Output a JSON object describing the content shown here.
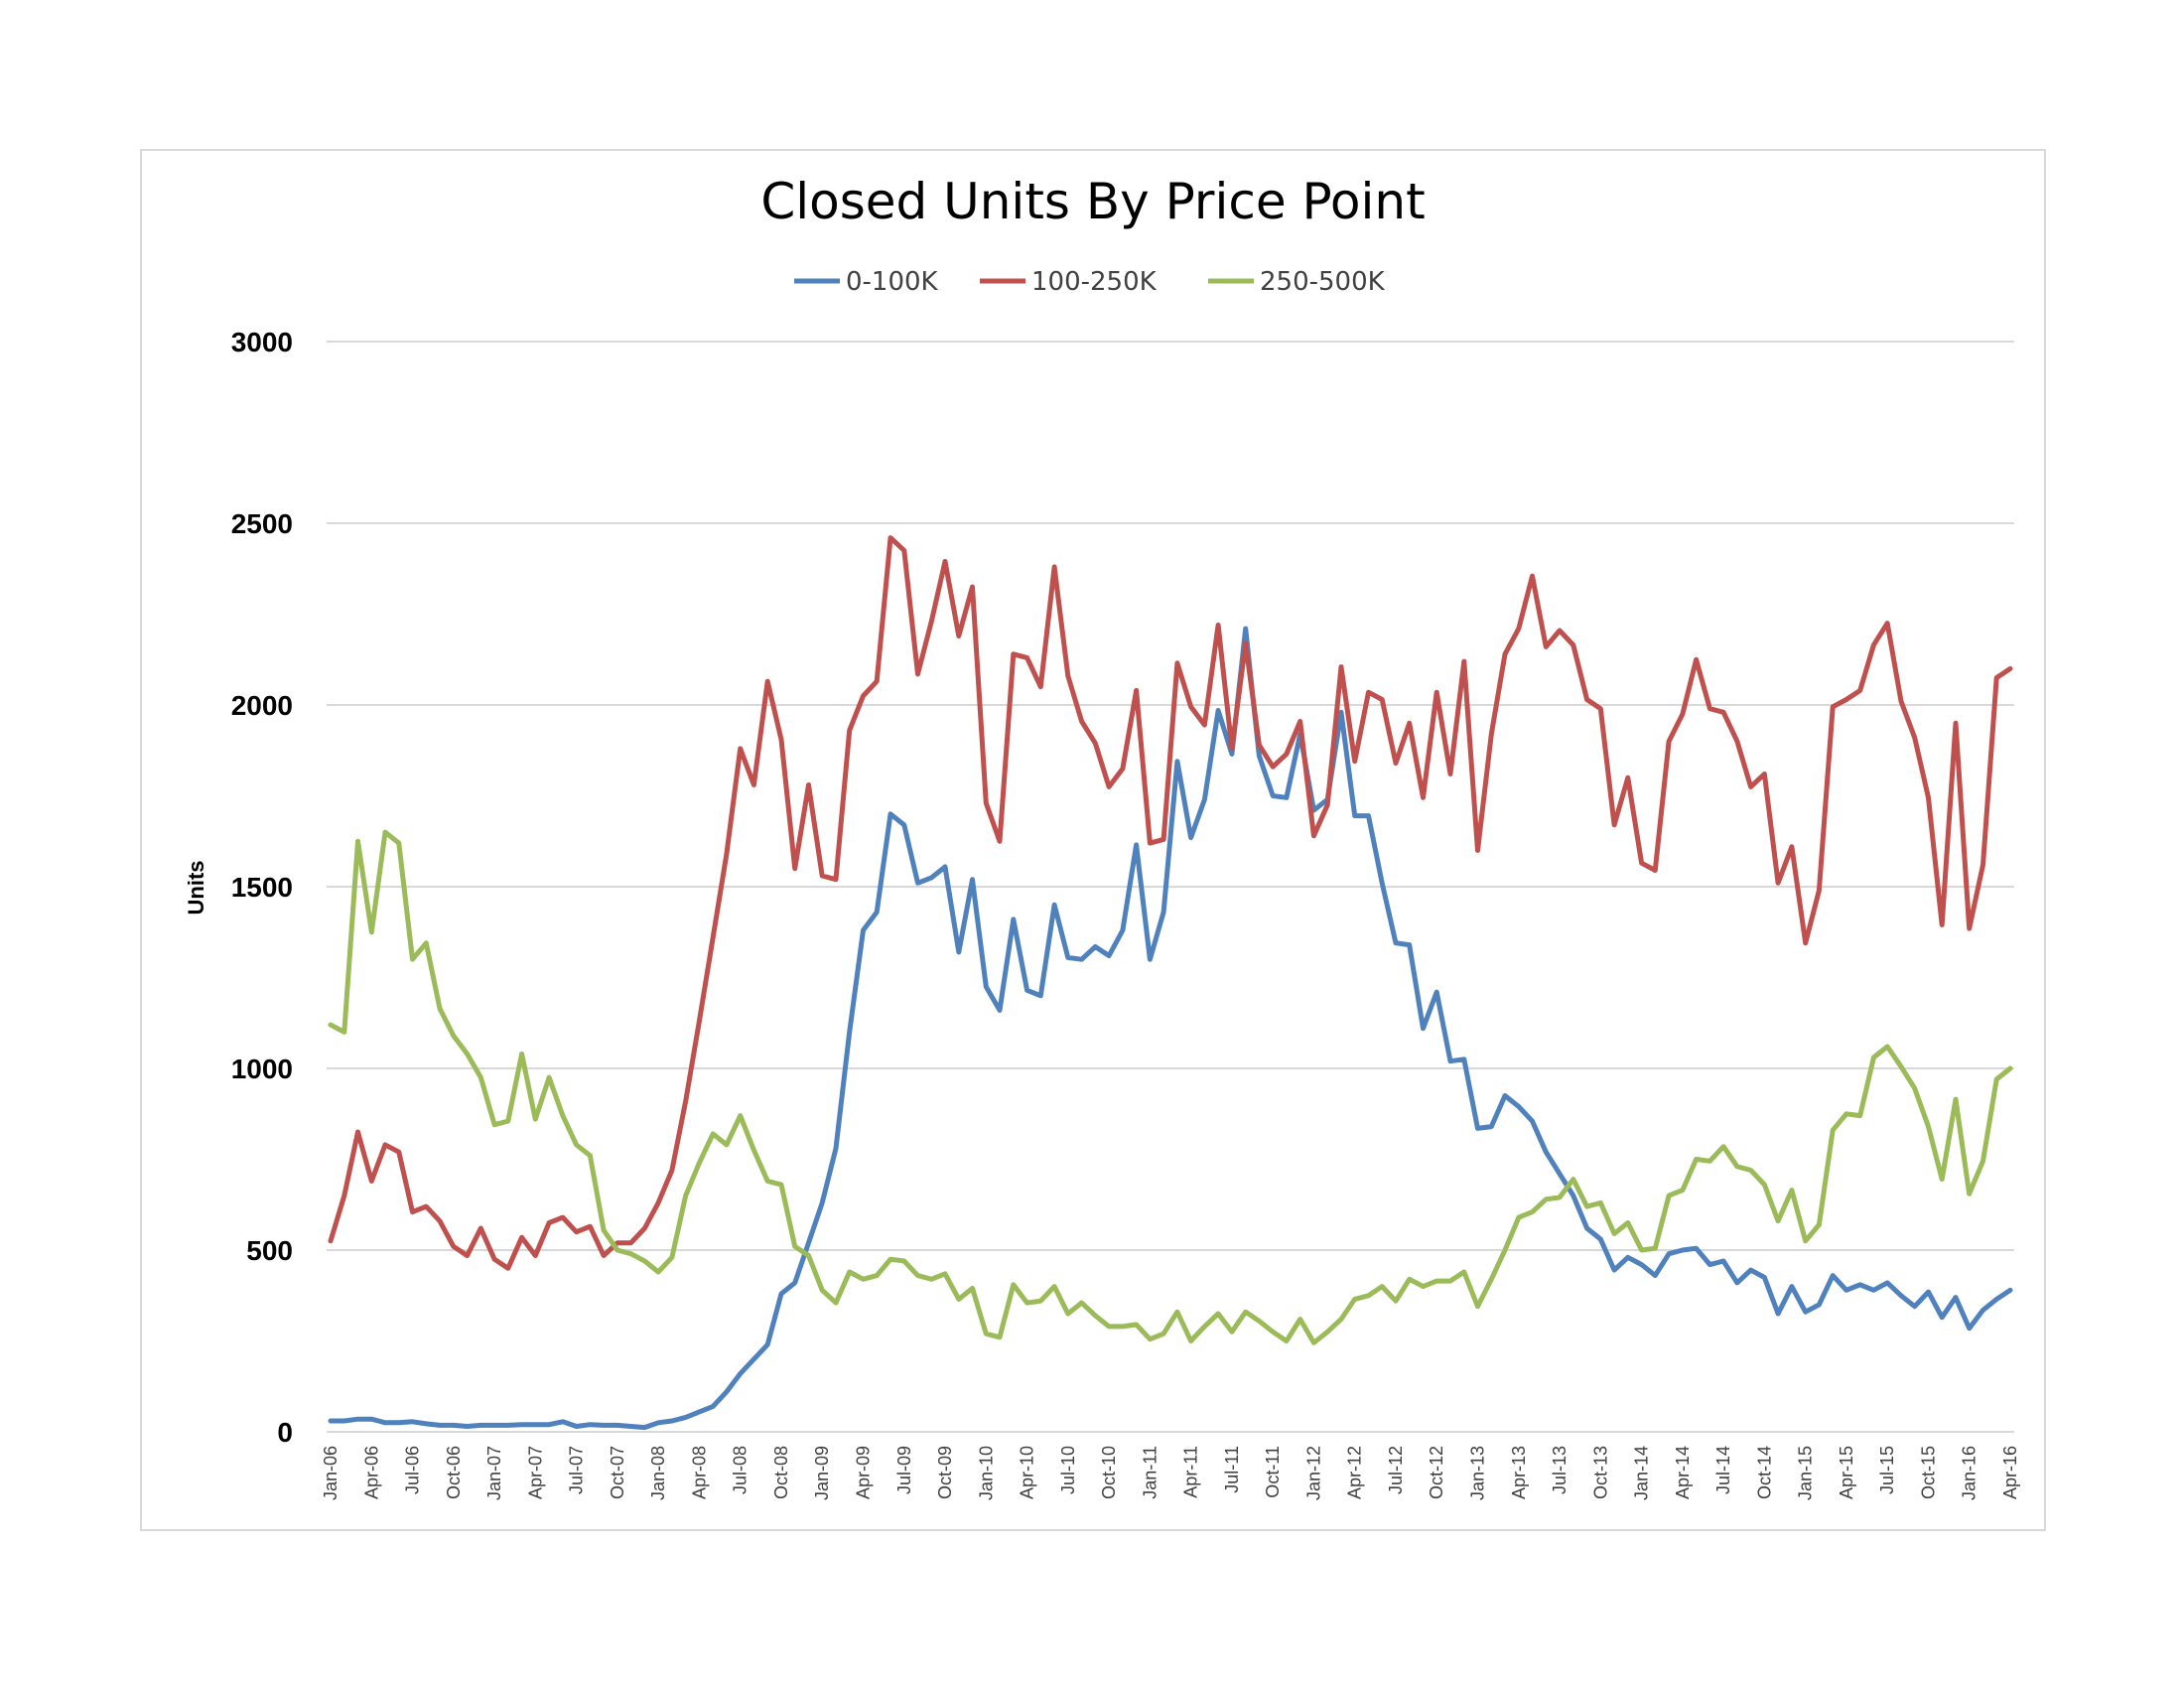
{
  "chart_data": {
    "type": "line",
    "title": "Closed Units By Price Point",
    "xlabel": "",
    "ylabel": "Units",
    "ylim": [
      0,
      3000
    ],
    "yticks": [
      0,
      500,
      1000,
      1500,
      2000,
      2500,
      3000
    ],
    "grid": true,
    "legend_position": "top",
    "x_start": "2006-01",
    "x_end": "2016-04",
    "x_tick_labels": [
      "Jan-06",
      "Apr-06",
      "Jul-06",
      "Oct-06",
      "Jan-07",
      "Apr-07",
      "Jul-07",
      "Oct-07",
      "Jan-08",
      "Apr-08",
      "Jul-08",
      "Oct-08",
      "Jan-09",
      "Apr-09",
      "Jul-09",
      "Oct-09",
      "Jan-10",
      "Apr-10",
      "Jul-10",
      "Oct-10",
      "Jan-11",
      "Apr-11",
      "Jul-11",
      "Oct-11",
      "Jan-12",
      "Apr-12",
      "Jul-12",
      "Oct-12",
      "Jan-13",
      "Apr-13",
      "Jul-13",
      "Oct-13",
      "Jan-14",
      "Apr-14",
      "Jul-14",
      "Oct-14",
      "Jan-15",
      "Apr-15",
      "Jul-15",
      "Oct-15",
      "Jan-16",
      "Apr-16"
    ],
    "series": [
      {
        "name": "0-100K",
        "color": "#4f81bd",
        "values": [
          30,
          30,
          35,
          35,
          25,
          25,
          28,
          22,
          18,
          18,
          15,
          18,
          18,
          18,
          20,
          20,
          20,
          28,
          15,
          20,
          18,
          18,
          15,
          12,
          25,
          30,
          40,
          55,
          70,
          110,
          160,
          200,
          240,
          380,
          410,
          520,
          630,
          780,
          1100,
          1380,
          1430,
          1700,
          1670,
          1510,
          1525,
          1555,
          1320,
          1520,
          1225,
          1160,
          1410,
          1215,
          1200,
          1450,
          1305,
          1300,
          1335,
          1310,
          1380,
          1615,
          1300,
          1430,
          1845,
          1635,
          1740,
          1985,
          1865,
          2210,
          1860,
          1750,
          1745,
          1920,
          1710,
          1740,
          1980,
          1695,
          1695,
          1510,
          1345,
          1340,
          1110,
          1210,
          1020,
          1025,
          835,
          840,
          925,
          895,
          855,
          770,
          710,
          650,
          560,
          530,
          445,
          480,
          460,
          430,
          490,
          500,
          505,
          460,
          470,
          410,
          445,
          425,
          325,
          400,
          330,
          350,
          430,
          390,
          405,
          390,
          410,
          375,
          345,
          385,
          315,
          370,
          285,
          335,
          365,
          390
        ]
      },
      {
        "name": "100-250K",
        "color": "#c0504d",
        "values": [
          525,
          650,
          825,
          690,
          790,
          770,
          605,
          620,
          580,
          510,
          485,
          560,
          475,
          450,
          535,
          485,
          575,
          590,
          550,
          565,
          485,
          520,
          520,
          560,
          630,
          720,
          910,
          1130,
          1360,
          1590,
          1880,
          1780,
          2065,
          1905,
          1550,
          1780,
          1530,
          1520,
          1930,
          2025,
          2065,
          2460,
          2425,
          2085,
          2230,
          2395,
          2190,
          2325,
          1730,
          1625,
          2140,
          2130,
          2050,
          2380,
          2080,
          1955,
          1895,
          1775,
          1825,
          2040,
          1620,
          1630,
          2115,
          1995,
          1945,
          2220,
          1880,
          2170,
          1890,
          1830,
          1865,
          1955,
          1640,
          1725,
          2105,
          1845,
          2035,
          2015,
          1840,
          1950,
          1745,
          2035,
          1810,
          2120,
          1600,
          1920,
          2140,
          2210,
          2355,
          2160,
          2205,
          2165,
          2015,
          1990,
          1670,
          1800,
          1565,
          1545,
          1900,
          1975,
          2125,
          1990,
          1980,
          1900,
          1775,
          1810,
          1510,
          1610,
          1345,
          1490,
          1995,
          2015,
          2040,
          2165,
          2225,
          2010,
          1910,
          1745,
          1395,
          1950,
          1385,
          1560,
          2075,
          2100
        ]
      },
      {
        "name": "250-500K",
        "color": "#9bbb59",
        "values": [
          1120,
          1100,
          1625,
          1375,
          1650,
          1620,
          1300,
          1345,
          1165,
          1090,
          1040,
          975,
          845,
          855,
          1040,
          860,
          975,
          870,
          790,
          760,
          555,
          500,
          490,
          470,
          440,
          480,
          650,
          740,
          820,
          790,
          870,
          775,
          690,
          680,
          510,
          485,
          390,
          355,
          440,
          420,
          430,
          475,
          470,
          430,
          420,
          435,
          365,
          395,
          270,
          260,
          405,
          355,
          360,
          400,
          325,
          355,
          320,
          290,
          290,
          295,
          255,
          270,
          330,
          250,
          290,
          325,
          275,
          330,
          305,
          275,
          250,
          310,
          245,
          275,
          310,
          365,
          375,
          400,
          360,
          420,
          400,
          415,
          415,
          440,
          345,
          420,
          500,
          590,
          605,
          640,
          645,
          695,
          620,
          630,
          545,
          575,
          500,
          505,
          650,
          665,
          750,
          745,
          785,
          730,
          720,
          680,
          580,
          665,
          525,
          570,
          830,
          875,
          870,
          1030,
          1060,
          1005,
          945,
          840,
          695,
          915,
          655,
          745,
          970,
          1000
        ]
      }
    ]
  }
}
